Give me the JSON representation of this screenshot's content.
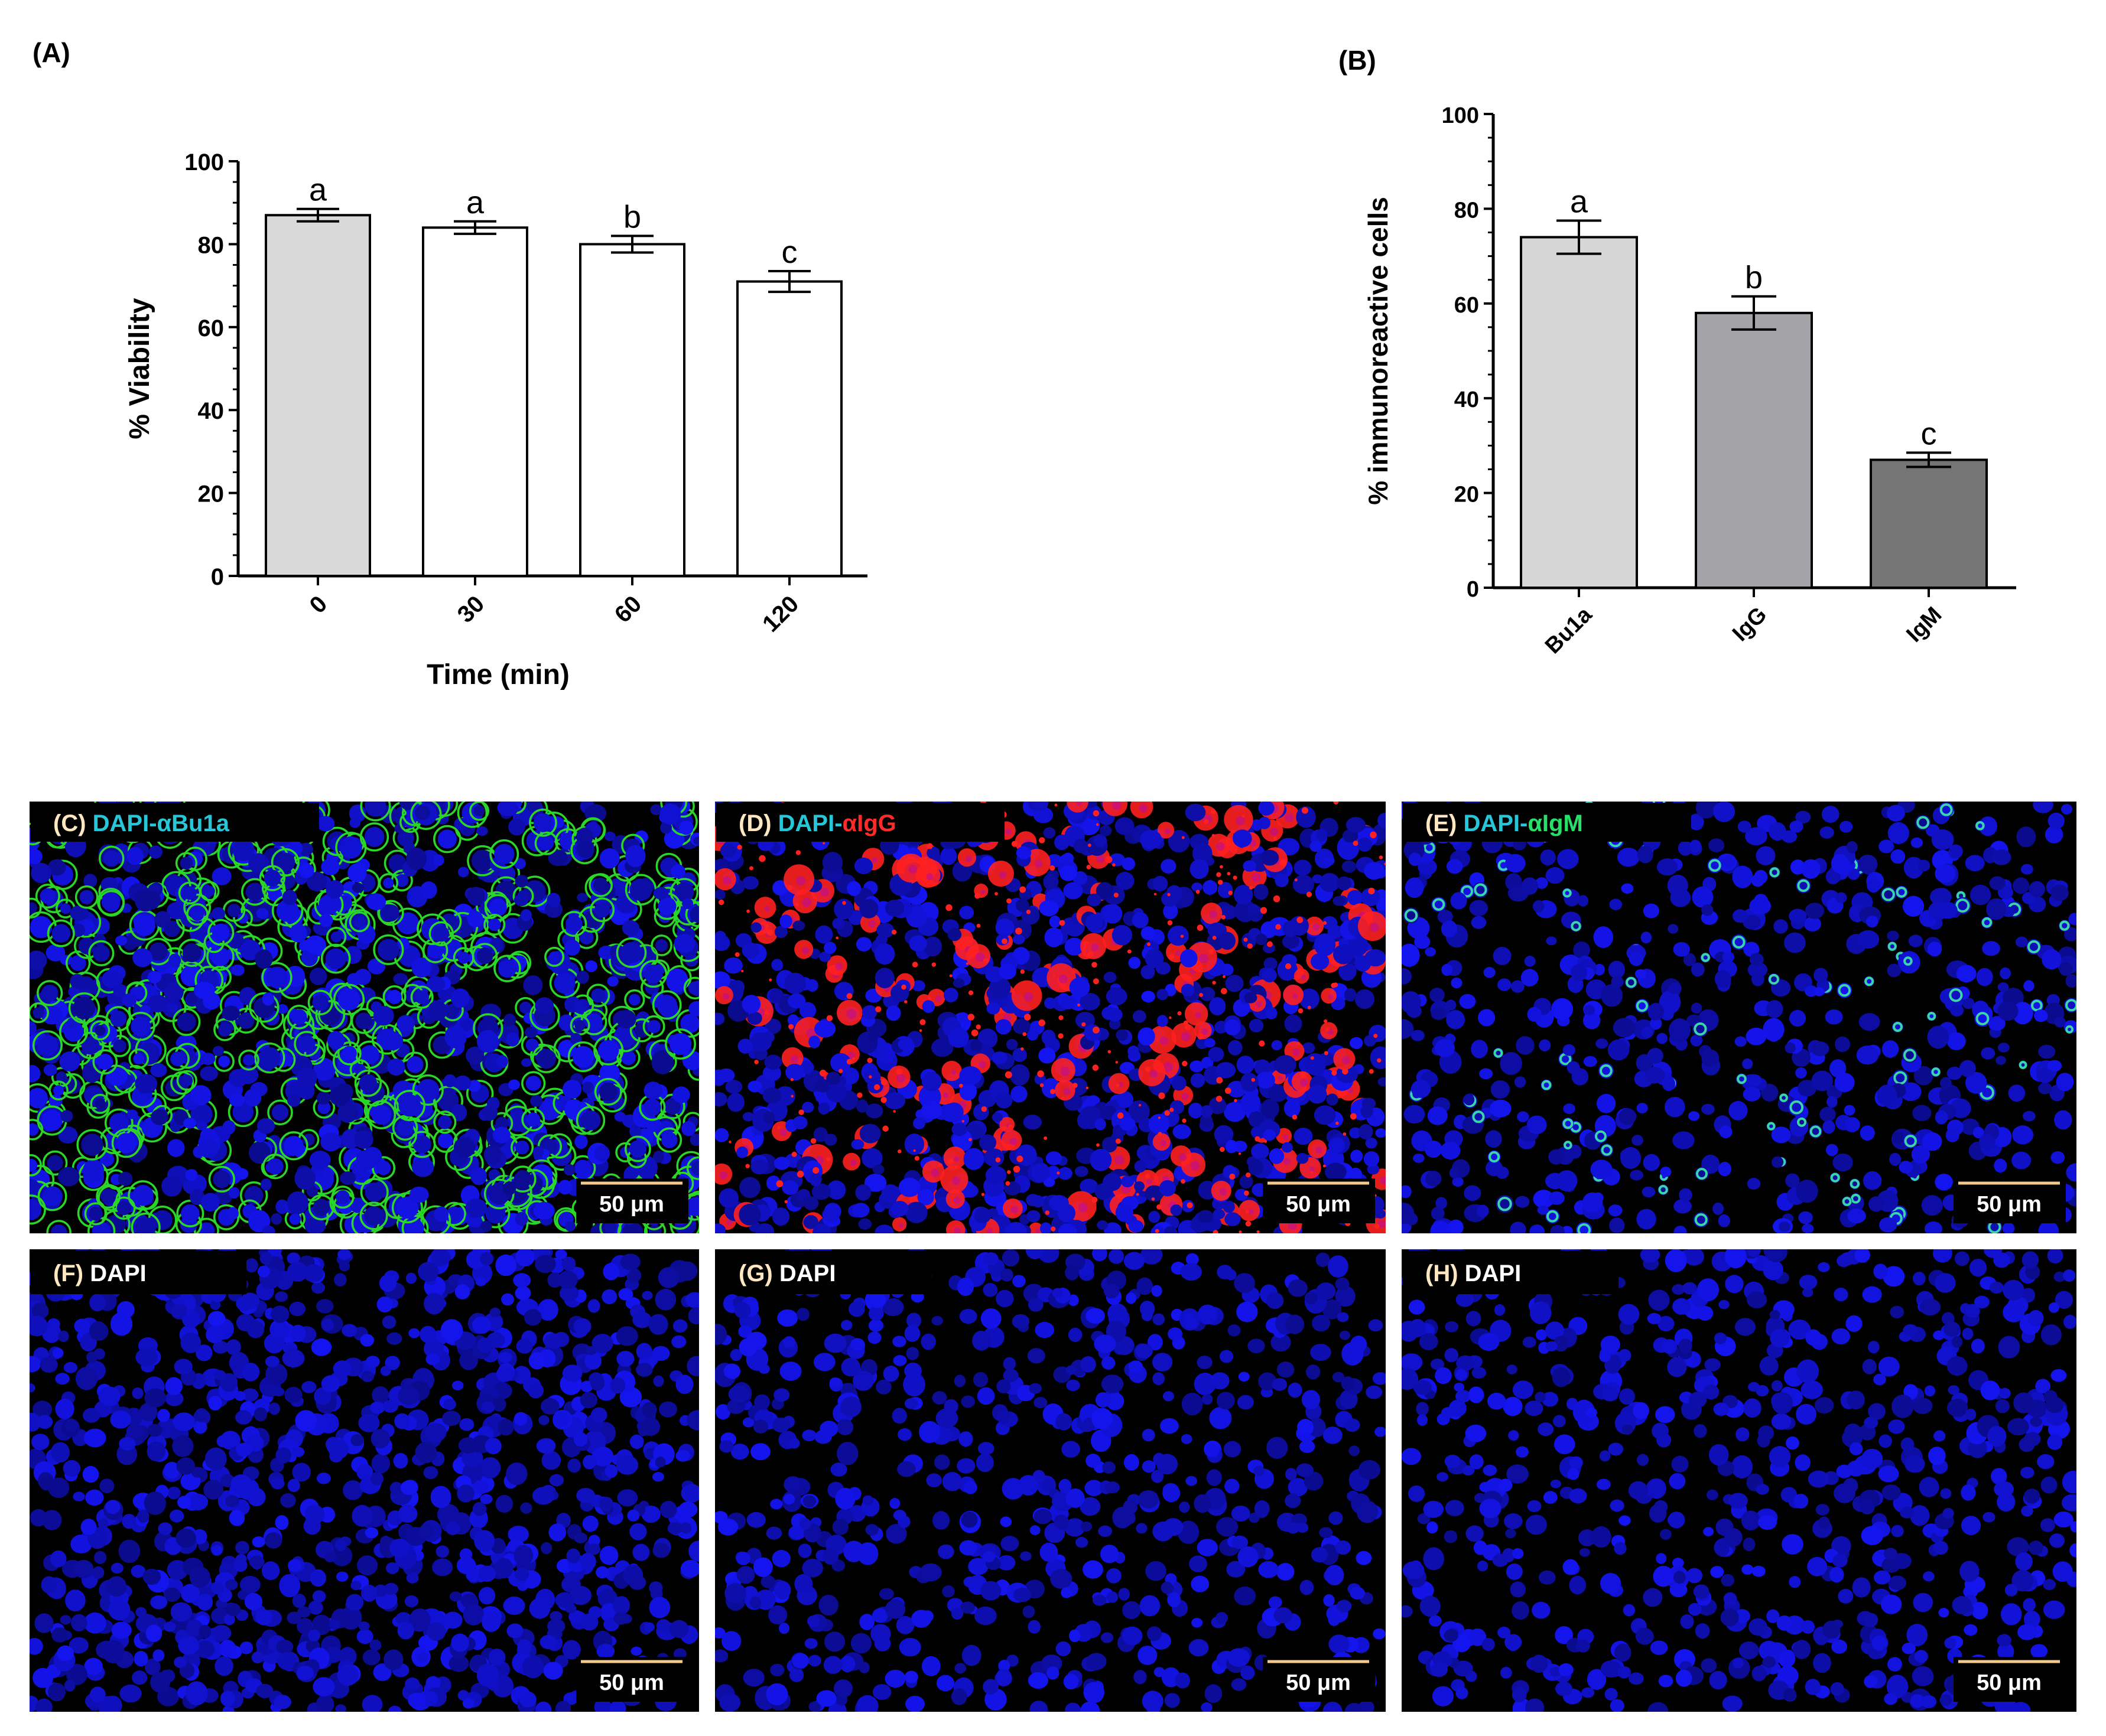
{
  "chart_data": [
    {
      "panel_label": "(A)",
      "type": "bar",
      "categories": [
        "0",
        "30",
        "60",
        "120"
      ],
      "values": [
        87,
        84,
        80,
        71
      ],
      "errors": [
        1.5,
        1.5,
        2.0,
        2.5
      ],
      "significance_letters": [
        "a",
        "a",
        "b",
        "c"
      ],
      "bar_colors": [
        "#d9d9d9",
        "#ffffff",
        "#ffffff",
        "#ffffff"
      ],
      "xlabel": "Time (min)",
      "ylabel": "% Viability",
      "ylim": [
        0,
        100
      ],
      "yticks": [
        "0",
        "20",
        "40",
        "60",
        "80",
        "100"
      ]
    },
    {
      "panel_label": "(B)",
      "type": "bar",
      "categories": [
        "Bu1a",
        "IgG",
        "IgM"
      ],
      "values": [
        74,
        58,
        27
      ],
      "errors": [
        3.5,
        3.5,
        1.5
      ],
      "significance_letters": [
        "a",
        "b",
        "c"
      ],
      "bar_colors": [
        "#d6d6d6",
        "#a3a3a8",
        "#757575"
      ],
      "xlabel": "",
      "ylabel": "% immunoreactive cells",
      "ylim": [
        0,
        100
      ],
      "yticks": [
        "0",
        "20",
        "40",
        "60",
        "80",
        "100"
      ]
    }
  ],
  "micrographs": [
    {
      "id": "C",
      "letter": "(C)",
      "labels": [
        "DAPI-",
        "αBu1a"
      ],
      "label_colors": [
        "#27c6d8",
        "#27c6d8"
      ],
      "stain": "bu1a",
      "scale_bar": "50 μm"
    },
    {
      "id": "D",
      "letter": "(D)",
      "labels": [
        "DAPI-",
        "αIgG"
      ],
      "label_colors": [
        "#27c6d8",
        "#ff2a2a"
      ],
      "stain": "igg",
      "scale_bar": "50 μm"
    },
    {
      "id": "E",
      "letter": "(E)",
      "labels": [
        "DAPI-",
        "αIgM"
      ],
      "label_colors": [
        "#27c6d8",
        "#27e06a"
      ],
      "stain": "igm",
      "scale_bar": "50 μm"
    },
    {
      "id": "F",
      "letter": "(F)",
      "labels": [
        "DAPI"
      ],
      "label_colors": [
        "#ffffff"
      ],
      "stain": "dapi",
      "scale_bar": "50 μm"
    },
    {
      "id": "G",
      "letter": "(G)",
      "labels": [
        "DAPI"
      ],
      "label_colors": [
        "#ffffff"
      ],
      "stain": "dapi",
      "scale_bar": "50 μm"
    },
    {
      "id": "H",
      "letter": "(H)",
      "labels": [
        "DAPI"
      ],
      "label_colors": [
        "#ffffff"
      ],
      "stain": "dapi",
      "scale_bar": "50 μm"
    }
  ],
  "colors": {
    "letter_label": "#ffe7c2",
    "scale_bar_line": "#f2c98a",
    "nucleus": "#1a1ad6",
    "bu1a_membrane": "#2bd62b",
    "igg_signal": "#ff2020",
    "igm_signal": "#38d6a8"
  }
}
